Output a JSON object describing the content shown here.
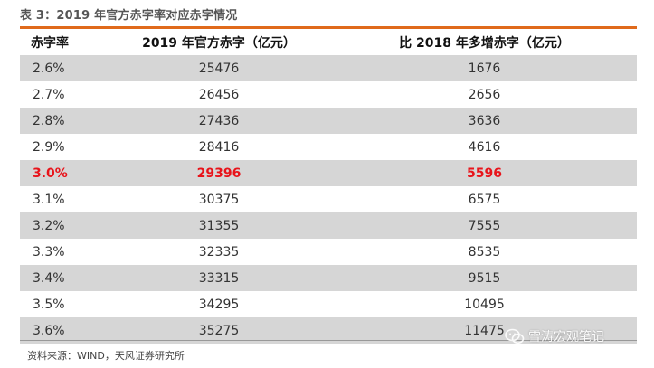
{
  "caption": "表 3：2019 年官方赤字率对应赤字情况",
  "table": {
    "headers": [
      "赤字率",
      "2019 年官方赤字（亿元）",
      "比 2018 年多增赤字（亿元）"
    ],
    "rows": [
      [
        "2.6%",
        "25476",
        "1676"
      ],
      [
        "2.7%",
        "26456",
        "2656"
      ],
      [
        "2.8%",
        "27436",
        "3636"
      ],
      [
        "2.9%",
        "28416",
        "4616"
      ],
      [
        "3.0%",
        "29396",
        "5596"
      ],
      [
        "3.1%",
        "30375",
        "6575"
      ],
      [
        "3.2%",
        "31355",
        "7555"
      ],
      [
        "3.3%",
        "32335",
        "8535"
      ],
      [
        "3.4%",
        "33315",
        "9515"
      ],
      [
        "3.5%",
        "34295",
        "10495"
      ],
      [
        "3.6%",
        "35275",
        "11475"
      ]
    ],
    "highlight_row_index": 4,
    "highlight_color": "#e8141b",
    "shaded_row_color": "#d6d6d6",
    "accent_rule_color": "#e06a1b"
  },
  "source": "资料来源：WIND，天风证券研究所",
  "watermark": {
    "icon": "wechat-icon",
    "text": "雪涛宏观笔记"
  }
}
